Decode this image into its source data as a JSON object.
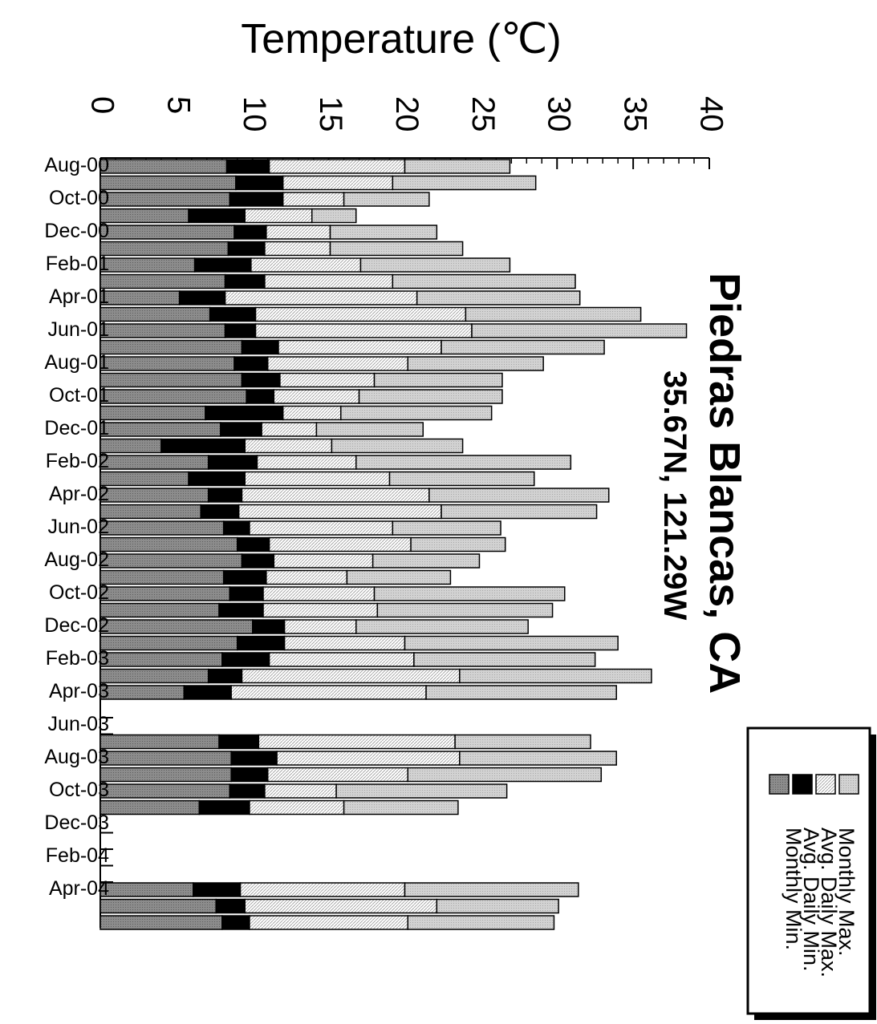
{
  "chart_data": {
    "type": "bar",
    "orientation": "horizontal",
    "stacked": true,
    "title": "Piedras Blancas, CA",
    "subtitle": "35.67N, 121.29W",
    "xlabel": "Temperature (℃)",
    "ylabel": "",
    "xlim": [
      0,
      40
    ],
    "x_ticks": [
      "0",
      "5",
      "10",
      "15",
      "20",
      "25",
      "30",
      "35",
      "40"
    ],
    "tick_label_rotation": "90deg clockwise",
    "category_labels": [
      "Aug-00",
      "Oct-00",
      "Dec-00",
      "Feb-01",
      "Apr-01",
      "Jun-01",
      "Aug-01",
      "Oct-01",
      "Dec-01",
      "Feb-02",
      "Apr-02",
      "Jun-02",
      "Aug-02",
      "Oct-02",
      "Dec-02",
      "Feb-03",
      "Apr-03",
      "Jun-03",
      "Aug-03",
      "Oct-03",
      "Dec-03",
      "Feb-04",
      "Apr-04"
    ],
    "legend": {
      "placement": "bottom-right",
      "entries": [
        "Monthly Max.",
        "Avg. Daily Max.",
        "Avg. Daily Min.",
        "Monthly Min."
      ]
    },
    "colors": {
      "monthly_min": "#8c8c8c",
      "avg_daily_min": "#000000",
      "avg_daily_max": "#ffffff",
      "monthly_max": "#d2d2d2"
    },
    "months": [
      {
        "month": "Aug-00",
        "monthly_min": 8.3,
        "avg_daily_min": 11.1,
        "avg_daily_max": 20.0,
        "monthly_max": 26.9
      },
      {
        "month": "Sep-00",
        "monthly_min": 8.9,
        "avg_daily_min": 12.0,
        "avg_daily_max": 19.2,
        "monthly_max": 28.6
      },
      {
        "month": "Oct-00",
        "monthly_min": 8.5,
        "avg_daily_min": 12.0,
        "avg_daily_max": 16.0,
        "monthly_max": 21.6
      },
      {
        "month": "Nov-00",
        "monthly_min": 5.8,
        "avg_daily_min": 9.5,
        "avg_daily_max": 13.9,
        "monthly_max": 16.8
      },
      {
        "month": "Dec-00",
        "monthly_min": 8.8,
        "avg_daily_min": 10.9,
        "avg_daily_max": 15.1,
        "monthly_max": 22.1
      },
      {
        "month": "Jan-01",
        "monthly_min": 8.4,
        "avg_daily_min": 10.8,
        "avg_daily_max": 15.1,
        "monthly_max": 23.8
      },
      {
        "month": "Feb-01",
        "monthly_min": 6.2,
        "avg_daily_min": 9.9,
        "avg_daily_max": 17.1,
        "monthly_max": 26.9
      },
      {
        "month": "Mar-01",
        "monthly_min": 8.2,
        "avg_daily_min": 10.8,
        "avg_daily_max": 19.2,
        "monthly_max": 31.2
      },
      {
        "month": "Apr-01",
        "monthly_min": 5.2,
        "avg_daily_min": 8.2,
        "avg_daily_max": 20.8,
        "monthly_max": 31.5
      },
      {
        "month": "May-01",
        "monthly_min": 7.2,
        "avg_daily_min": 10.2,
        "avg_daily_max": 24.0,
        "monthly_max": 35.5
      },
      {
        "month": "Jun-01",
        "monthly_min": 8.2,
        "avg_daily_min": 10.2,
        "avg_daily_max": 24.4,
        "monthly_max": 38.5
      },
      {
        "month": "Jul-01",
        "monthly_min": 9.3,
        "avg_daily_min": 11.7,
        "avg_daily_max": 22.4,
        "monthly_max": 33.1
      },
      {
        "month": "Aug-01",
        "monthly_min": 8.8,
        "avg_daily_min": 11.0,
        "avg_daily_max": 20.2,
        "monthly_max": 29.1
      },
      {
        "month": "Sep-01",
        "monthly_min": 9.3,
        "avg_daily_min": 11.8,
        "avg_daily_max": 18.0,
        "monthly_max": 26.4
      },
      {
        "month": "Oct-01",
        "monthly_min": 9.6,
        "avg_daily_min": 11.4,
        "avg_daily_max": 17.0,
        "monthly_max": 26.4
      },
      {
        "month": "Nov-01",
        "monthly_min": 6.9,
        "avg_daily_min": 12.0,
        "avg_daily_max": 15.8,
        "monthly_max": 25.7
      },
      {
        "month": "Dec-01",
        "monthly_min": 7.9,
        "avg_daily_min": 10.6,
        "avg_daily_max": 14.2,
        "monthly_max": 21.2
      },
      {
        "month": "Jan-02",
        "monthly_min": 4.0,
        "avg_daily_min": 9.5,
        "avg_daily_max": 15.2,
        "monthly_max": 23.8
      },
      {
        "month": "Feb-02",
        "monthly_min": 7.1,
        "avg_daily_min": 10.3,
        "avg_daily_max": 16.8,
        "monthly_max": 30.9
      },
      {
        "month": "Mar-02",
        "monthly_min": 5.8,
        "avg_daily_min": 9.5,
        "avg_daily_max": 19.0,
        "monthly_max": 28.5
      },
      {
        "month": "Apr-02",
        "monthly_min": 7.1,
        "avg_daily_min": 9.3,
        "avg_daily_max": 21.6,
        "monthly_max": 33.4
      },
      {
        "month": "May-02",
        "monthly_min": 6.6,
        "avg_daily_min": 9.1,
        "avg_daily_max": 22.4,
        "monthly_max": 32.6
      },
      {
        "month": "Jun-02",
        "monthly_min": 8.1,
        "avg_daily_min": 9.8,
        "avg_daily_max": 19.2,
        "monthly_max": 26.3
      },
      {
        "month": "Jul-02",
        "monthly_min": 9.0,
        "avg_daily_min": 11.1,
        "avg_daily_max": 20.4,
        "monthly_max": 26.6
      },
      {
        "month": "Aug-02",
        "monthly_min": 9.3,
        "avg_daily_min": 11.4,
        "avg_daily_max": 17.9,
        "monthly_max": 24.9
      },
      {
        "month": "Sep-02",
        "monthly_min": 8.1,
        "avg_daily_min": 10.9,
        "avg_daily_max": 16.2,
        "monthly_max": 23.0
      },
      {
        "month": "Oct-02",
        "monthly_min": 8.5,
        "avg_daily_min": 10.7,
        "avg_daily_max": 18.0,
        "monthly_max": 30.5
      },
      {
        "month": "Nov-02",
        "monthly_min": 7.8,
        "avg_daily_min": 10.7,
        "avg_daily_max": 18.2,
        "monthly_max": 29.7
      },
      {
        "month": "Dec-02",
        "monthly_min": 10.0,
        "avg_daily_min": 12.1,
        "avg_daily_max": 16.8,
        "monthly_max": 28.1
      },
      {
        "month": "Jan-03",
        "monthly_min": 9.0,
        "avg_daily_min": 12.1,
        "avg_daily_max": 20.0,
        "monthly_max": 34.0
      },
      {
        "month": "Feb-03",
        "monthly_min": 8.0,
        "avg_daily_min": 11.1,
        "avg_daily_max": 20.6,
        "monthly_max": 32.5
      },
      {
        "month": "Mar-03",
        "monthly_min": 7.1,
        "avg_daily_min": 9.3,
        "avg_daily_max": 23.6,
        "monthly_max": 36.2
      },
      {
        "month": "Apr-03",
        "monthly_min": 5.5,
        "avg_daily_min": 8.6,
        "avg_daily_max": 21.4,
        "monthly_max": 33.9
      },
      {
        "month": "May-03",
        "monthly_min": null,
        "avg_daily_min": null,
        "avg_daily_max": null,
        "monthly_max": null
      },
      {
        "month": "Jun-03",
        "monthly_min": null,
        "avg_daily_min": null,
        "avg_daily_max": null,
        "monthly_max": null
      },
      {
        "month": "Jul-03",
        "monthly_min": 7.8,
        "avg_daily_min": 10.4,
        "avg_daily_max": 23.3,
        "monthly_max": 32.2
      },
      {
        "month": "Aug-03",
        "monthly_min": 8.6,
        "avg_daily_min": 11.6,
        "avg_daily_max": 23.6,
        "monthly_max": 33.9
      },
      {
        "month": "Sep-03",
        "monthly_min": 8.6,
        "avg_daily_min": 11.0,
        "avg_daily_max": 20.2,
        "monthly_max": 32.9
      },
      {
        "month": "Oct-03",
        "monthly_min": 8.5,
        "avg_daily_min": 10.8,
        "avg_daily_max": 15.5,
        "monthly_max": 26.7
      },
      {
        "month": "Nov-03",
        "monthly_min": 6.5,
        "avg_daily_min": 9.8,
        "avg_daily_max": 16.0,
        "monthly_max": 23.5
      },
      {
        "month": "Dec-03",
        "monthly_min": null,
        "avg_daily_min": null,
        "avg_daily_max": null,
        "monthly_max": null
      },
      {
        "month": "Jan-04",
        "monthly_min": null,
        "avg_daily_min": null,
        "avg_daily_max": null,
        "monthly_max": null
      },
      {
        "month": "Feb-04",
        "monthly_min": null,
        "avg_daily_min": null,
        "avg_daily_max": null,
        "monthly_max": null
      },
      {
        "month": "Mar-04",
        "monthly_min": null,
        "avg_daily_min": null,
        "avg_daily_max": null,
        "monthly_max": null
      },
      {
        "month": "Apr-04",
        "monthly_min": 6.1,
        "avg_daily_min": 9.2,
        "avg_daily_max": 20.0,
        "monthly_max": 31.4
      },
      {
        "month": "May-04",
        "monthly_min": 7.6,
        "avg_daily_min": 9.5,
        "avg_daily_max": 22.1,
        "monthly_max": 30.1
      },
      {
        "month": "Jun-04",
        "monthly_min": 8.0,
        "avg_daily_min": 9.8,
        "avg_daily_max": 20.2,
        "monthly_max": 29.8
      }
    ]
  }
}
